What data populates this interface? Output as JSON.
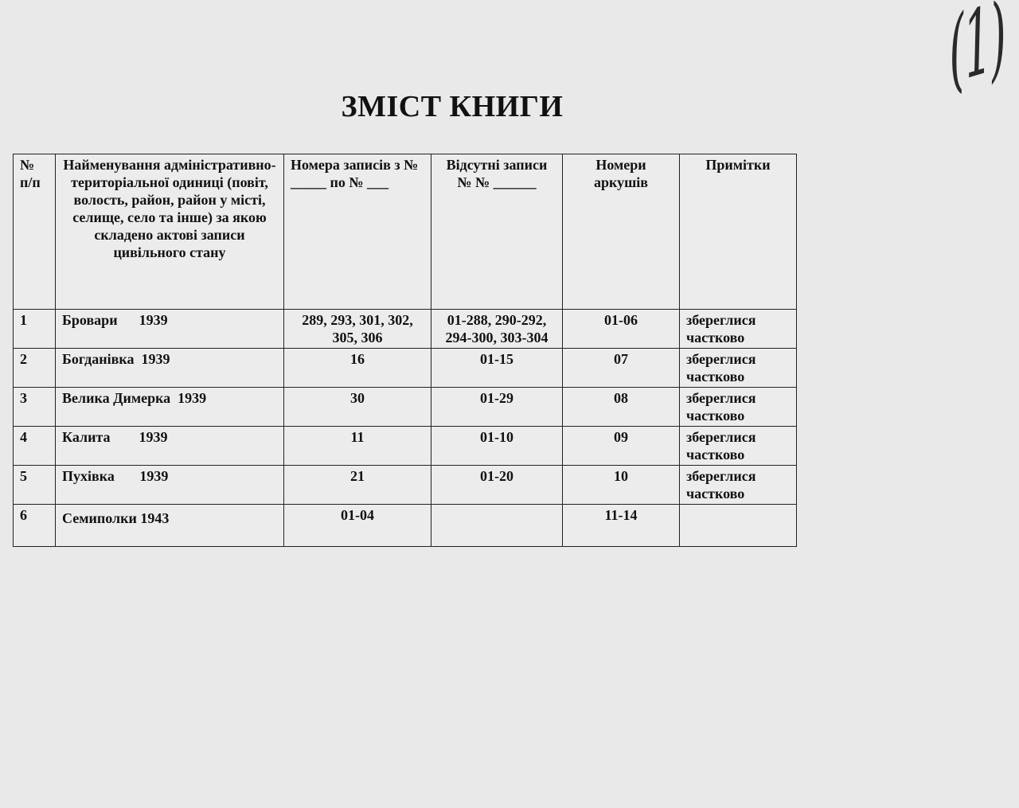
{
  "title": "ЗМІСТ КНИГИ",
  "table": {
    "headers": [
      "№ п/п",
      "Найменування адміністративно-територіальної одиниці (повіт, волость, район, район у місті, селище, село та інше) за якою складено актові записи цивільного стану",
      "Номера записів з № _____ по № ___",
      "Відсутні записи № № ______",
      "Номери аркушів",
      "Примітки"
    ],
    "rows": [
      {
        "num": "1",
        "name": "Бровари      1939",
        "records": "289, 293, 301, 302, 305, 306",
        "missing": "01-288, 290-292, 294-300, 303-304",
        "sheets": "01-06",
        "notes": "збереглися частково"
      },
      {
        "num": "2",
        "name": "Богданівка  1939",
        "records": "16",
        "missing": "01-15",
        "sheets": "07",
        "notes": "збереглися частково"
      },
      {
        "num": "3",
        "name": "Велика Димерка  1939",
        "records": "30",
        "missing": "01-29",
        "sheets": "08",
        "notes": "збереглися частково"
      },
      {
        "num": "4",
        "name": "Калита        1939",
        "records": "11",
        "missing": "01-10",
        "sheets": "09",
        "notes": "збереглися частково"
      },
      {
        "num": "5",
        "name": "Пухівка       1939",
        "records": "21",
        "missing": "01-20",
        "sheets": "10",
        "notes": "збереглися частково"
      },
      {
        "num": "6",
        "name": "Семиполки 1943",
        "records": "01-04",
        "missing": "",
        "sheets": "11-14",
        "notes": ""
      }
    ]
  },
  "handwritten_mark": "(1)"
}
